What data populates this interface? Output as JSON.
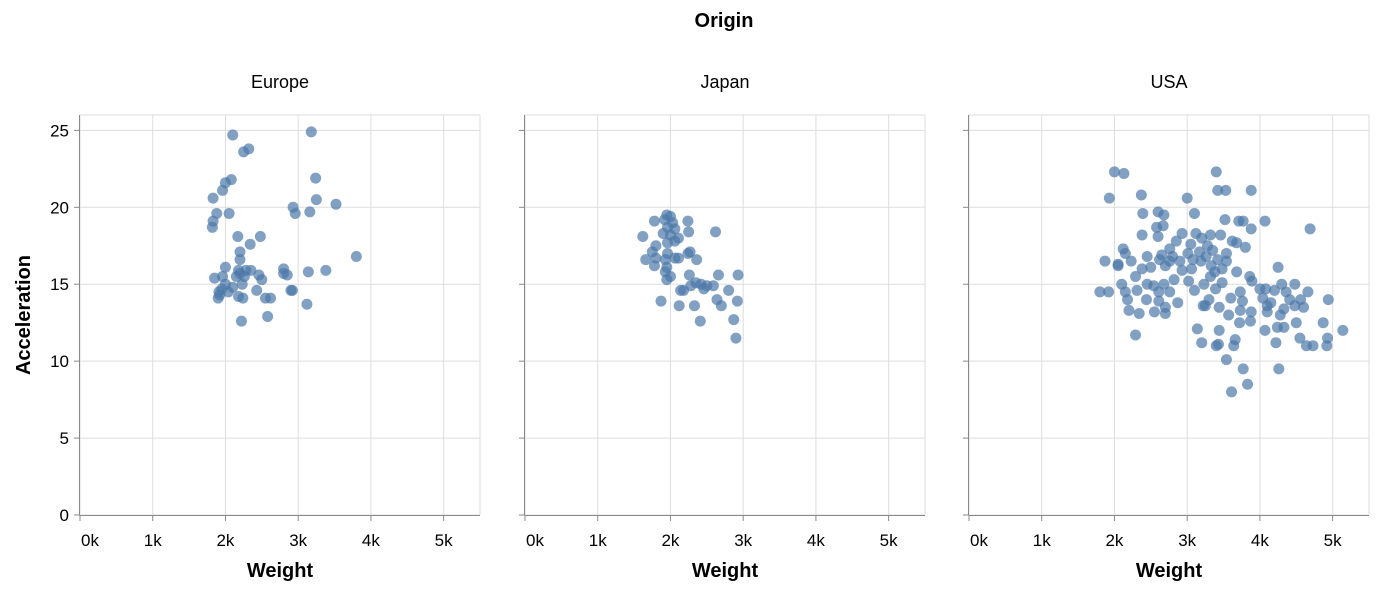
{
  "chart_data": {
    "type": "scatter",
    "title": "Origin",
    "xlabel": "Weight",
    "ylabel": "Acceleration",
    "xlim": [
      0,
      5500
    ],
    "ylim": [
      0,
      26
    ],
    "x_ticks": [
      {
        "value": 0,
        "label": "0k"
      },
      {
        "value": 1000,
        "label": "1k"
      },
      {
        "value": 2000,
        "label": "2k"
      },
      {
        "value": 3000,
        "label": "3k"
      },
      {
        "value": 4000,
        "label": "4k"
      },
      {
        "value": 5000,
        "label": "5k"
      }
    ],
    "y_ticks": [
      {
        "value": 0,
        "label": "0"
      },
      {
        "value": 5,
        "label": "5"
      },
      {
        "value": 10,
        "label": "10"
      },
      {
        "value": 15,
        "label": "15"
      },
      {
        "value": 20,
        "label": "20"
      },
      {
        "value": 25,
        "label": "25"
      }
    ],
    "grid": true,
    "color": "#4c78a8",
    "facets": [
      {
        "label": "Europe",
        "points": [
          [
            2100,
            24.7
          ],
          [
            2250,
            23.6
          ],
          [
            2320,
            23.8
          ],
          [
            3180,
            24.9
          ],
          [
            1960,
            21.1
          ],
          [
            2000,
            21.6
          ],
          [
            2080,
            21.8
          ],
          [
            3240,
            21.9
          ],
          [
            1830,
            20.6
          ],
          [
            3250,
            20.5
          ],
          [
            3520,
            20.2
          ],
          [
            2930,
            20.0
          ],
          [
            1880,
            19.6
          ],
          [
            2050,
            19.6
          ],
          [
            2960,
            19.6
          ],
          [
            3160,
            19.7
          ],
          [
            1830,
            19.1
          ],
          [
            1820,
            18.7
          ],
          [
            2170,
            18.1
          ],
          [
            2480,
            18.1
          ],
          [
            2340,
            17.6
          ],
          [
            2200,
            17.1
          ],
          [
            3800,
            16.8
          ],
          [
            2200,
            16.6
          ],
          [
            2000,
            16.1
          ],
          [
            2180,
            15.9
          ],
          [
            2280,
            15.9
          ],
          [
            2350,
            15.9
          ],
          [
            2800,
            16.0
          ],
          [
            3140,
            15.8
          ],
          [
            3380,
            15.9
          ],
          [
            2200,
            15.7
          ],
          [
            1850,
            15.4
          ],
          [
            1960,
            15.5
          ],
          [
            2150,
            15.5
          ],
          [
            2260,
            15.5
          ],
          [
            2460,
            15.6
          ],
          [
            2850,
            15.6
          ],
          [
            2500,
            15.3
          ],
          [
            2800,
            15.7
          ],
          [
            2000,
            15.0
          ],
          [
            2100,
            14.8
          ],
          [
            1950,
            14.7
          ],
          [
            2040,
            14.5
          ],
          [
            2430,
            14.6
          ],
          [
            2920,
            14.6
          ],
          [
            1920,
            14.3
          ],
          [
            2180,
            14.2
          ],
          [
            2240,
            14.1
          ],
          [
            2550,
            14.1
          ],
          [
            2620,
            14.1
          ],
          [
            1900,
            14.1
          ],
          [
            3120,
            13.7
          ],
          [
            2580,
            12.9
          ],
          [
            2220,
            12.6
          ],
          [
            2900,
            14.6
          ],
          [
            2230,
            15.0
          ],
          [
            1910,
            14.5
          ]
        ]
      },
      {
        "label": "Japan",
        "points": [
          [
            1950,
            19.5
          ],
          [
            2000,
            19.4
          ],
          [
            1780,
            19.1
          ],
          [
            1920,
            19.2
          ],
          [
            2030,
            19.0
          ],
          [
            2240,
            19.1
          ],
          [
            1960,
            18.7
          ],
          [
            2060,
            18.6
          ],
          [
            1620,
            18.1
          ],
          [
            1900,
            18.3
          ],
          [
            2000,
            18.2
          ],
          [
            2110,
            18.0
          ],
          [
            2250,
            18.4
          ],
          [
            2620,
            18.4
          ],
          [
            1960,
            17.7
          ],
          [
            2060,
            17.8
          ],
          [
            1800,
            17.5
          ],
          [
            1750,
            17.1
          ],
          [
            1960,
            17.0
          ],
          [
            2270,
            17.1
          ],
          [
            2240,
            17.0
          ],
          [
            1660,
            16.6
          ],
          [
            1800,
            16.7
          ],
          [
            1930,
            16.6
          ],
          [
            2060,
            16.7
          ],
          [
            2110,
            16.7
          ],
          [
            2360,
            16.6
          ],
          [
            1780,
            16.2
          ],
          [
            1950,
            16.1
          ],
          [
            1930,
            15.8
          ],
          [
            2000,
            15.5
          ],
          [
            2260,
            15.6
          ],
          [
            2660,
            15.6
          ],
          [
            2930,
            15.6
          ],
          [
            1950,
            15.3
          ],
          [
            2350,
            15.1
          ],
          [
            2420,
            15.0
          ],
          [
            2500,
            14.9
          ],
          [
            2590,
            14.9
          ],
          [
            2280,
            14.9
          ],
          [
            2140,
            14.6
          ],
          [
            2180,
            14.6
          ],
          [
            2460,
            14.7
          ],
          [
            2800,
            14.6
          ],
          [
            1870,
            13.9
          ],
          [
            2120,
            13.6
          ],
          [
            2330,
            13.6
          ],
          [
            2640,
            14.0
          ],
          [
            2700,
            13.6
          ],
          [
            2920,
            13.9
          ],
          [
            2410,
            12.6
          ],
          [
            2870,
            12.7
          ],
          [
            2900,
            11.5
          ]
        ]
      },
      {
        "label": "USA",
        "points": [
          [
            2000,
            22.3
          ],
          [
            2130,
            22.2
          ],
          [
            3400,
            22.3
          ],
          [
            3420,
            21.1
          ],
          [
            3530,
            21.1
          ],
          [
            3880,
            21.1
          ],
          [
            2370,
            20.8
          ],
          [
            1930,
            20.6
          ],
          [
            3000,
            20.6
          ],
          [
            3520,
            19.2
          ],
          [
            2390,
            19.6
          ],
          [
            2600,
            19.7
          ],
          [
            3100,
            19.6
          ],
          [
            2680,
            19.5
          ],
          [
            3710,
            19.1
          ],
          [
            3770,
            19.1
          ],
          [
            4070,
            19.1
          ],
          [
            2380,
            18.2
          ],
          [
            2580,
            18.7
          ],
          [
            2670,
            18.8
          ],
          [
            2930,
            18.3
          ],
          [
            3120,
            18.3
          ],
          [
            3200,
            18.0
          ],
          [
            3320,
            18.2
          ],
          [
            3460,
            18.2
          ],
          [
            3880,
            18.6
          ],
          [
            4690,
            18.6
          ],
          [
            2600,
            18.1
          ],
          [
            2850,
            17.8
          ],
          [
            3050,
            17.6
          ],
          [
            3280,
            17.5
          ],
          [
            3620,
            17.8
          ],
          [
            3680,
            17.7
          ],
          [
            3800,
            17.4
          ],
          [
            2120,
            17.3
          ],
          [
            2760,
            17.3
          ],
          [
            3010,
            17.0
          ],
          [
            3170,
            17.1
          ],
          [
            3350,
            17.2
          ],
          [
            3540,
            17.0
          ],
          [
            2150,
            17.0
          ],
          [
            2450,
            16.8
          ],
          [
            2650,
            16.9
          ],
          [
            2800,
            16.8
          ],
          [
            3080,
            16.6
          ],
          [
            3260,
            16.8
          ],
          [
            3420,
            16.6
          ],
          [
            3540,
            16.5
          ],
          [
            1870,
            16.5
          ],
          [
            2050,
            16.3
          ],
          [
            2230,
            16.5
          ],
          [
            2620,
            16.6
          ],
          [
            2760,
            16.5
          ],
          [
            2900,
            16.5
          ],
          [
            3190,
            16.5
          ],
          [
            3330,
            16.2
          ],
          [
            3480,
            16.0
          ],
          [
            4250,
            16.1
          ],
          [
            2050,
            16.2
          ],
          [
            2380,
            16.0
          ],
          [
            2500,
            16.1
          ],
          [
            2700,
            16.2
          ],
          [
            2930,
            15.9
          ],
          [
            3060,
            16.0
          ],
          [
            3380,
            15.8
          ],
          [
            3680,
            15.8
          ],
          [
            3860,
            15.5
          ],
          [
            2100,
            15.0
          ],
          [
            2290,
            15.5
          ],
          [
            2450,
            15.0
          ],
          [
            2540,
            14.9
          ],
          [
            2680,
            15.0
          ],
          [
            2820,
            15.3
          ],
          [
            3020,
            15.2
          ],
          [
            3230,
            15.0
          ],
          [
            3320,
            15.5
          ],
          [
            3480,
            15.1
          ],
          [
            3890,
            15.2
          ],
          [
            4080,
            14.7
          ],
          [
            4300,
            15.0
          ],
          [
            4480,
            15.0
          ],
          [
            1800,
            14.5
          ],
          [
            1920,
            14.5
          ],
          [
            2150,
            14.5
          ],
          [
            2310,
            14.6
          ],
          [
            2610,
            14.5
          ],
          [
            2760,
            14.5
          ],
          [
            3100,
            14.6
          ],
          [
            3390,
            14.7
          ],
          [
            3730,
            14.5
          ],
          [
            4000,
            14.7
          ],
          [
            4200,
            14.6
          ],
          [
            4360,
            14.5
          ],
          [
            4660,
            14.5
          ],
          [
            2180,
            14.0
          ],
          [
            2440,
            14.0
          ],
          [
            2610,
            13.9
          ],
          [
            3300,
            14.0
          ],
          [
            3600,
            14.1
          ],
          [
            3760,
            13.9
          ],
          [
            4040,
            14.1
          ],
          [
            4150,
            13.8
          ],
          [
            4410,
            14.0
          ],
          [
            4560,
            14.0
          ],
          [
            4940,
            14.0
          ],
          [
            2200,
            13.3
          ],
          [
            2340,
            13.1
          ],
          [
            2550,
            13.2
          ],
          [
            2700,
            13.1
          ],
          [
            2870,
            13.8
          ],
          [
            3220,
            13.6
          ],
          [
            3440,
            13.5
          ],
          [
            3570,
            13.0
          ],
          [
            3730,
            13.3
          ],
          [
            3880,
            13.2
          ],
          [
            4100,
            13.2
          ],
          [
            4280,
            13.0
          ],
          [
            4600,
            13.5
          ],
          [
            4100,
            13.6
          ],
          [
            4480,
            13.6
          ],
          [
            2700,
            13.5
          ],
          [
            3140,
            12.1
          ],
          [
            3250,
            13.6
          ],
          [
            3720,
            12.5
          ],
          [
            3870,
            12.6
          ],
          [
            4070,
            12.0
          ],
          [
            4330,
            12.2
          ],
          [
            4500,
            12.5
          ],
          [
            4870,
            12.5
          ],
          [
            5140,
            12.0
          ],
          [
            2290,
            11.7
          ],
          [
            3200,
            11.2
          ],
          [
            3400,
            11.0
          ],
          [
            3440,
            12.0
          ],
          [
            3660,
            11.4
          ],
          [
            4220,
            11.2
          ],
          [
            4550,
            11.5
          ],
          [
            4640,
            11.0
          ],
          [
            4920,
            11.0
          ],
          [
            4730,
            11.0
          ],
          [
            3540,
            10.1
          ],
          [
            3770,
            9.5
          ],
          [
            4260,
            9.5
          ],
          [
            3830,
            8.5
          ],
          [
            3610,
            8.0
          ],
          [
            3640,
            11.0
          ],
          [
            4930,
            11.5
          ],
          [
            4240,
            12.2
          ],
          [
            4330,
            13.4
          ],
          [
            3430,
            11.1
          ]
        ]
      }
    ]
  }
}
